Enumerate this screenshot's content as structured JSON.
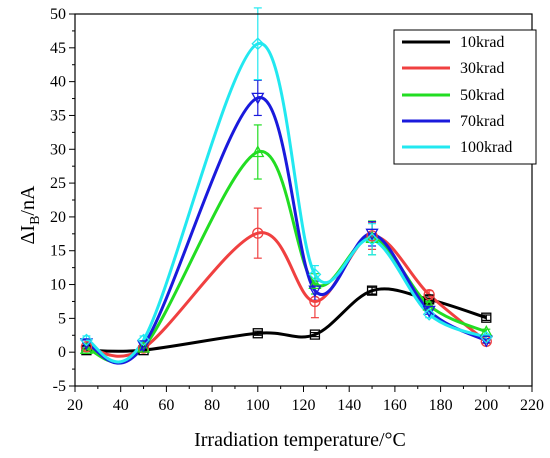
{
  "chart_data": {
    "type": "line",
    "title": "",
    "xlabel": "Irradiation temperature/°C",
    "ylabel": {
      "main": "ΔI",
      "sub": "B",
      "unit": "/nA"
    },
    "xlim": [
      20,
      220
    ],
    "ylim": [
      -5,
      50
    ],
    "x_ticks": [
      20,
      40,
      60,
      80,
      100,
      120,
      140,
      160,
      180,
      200,
      220
    ],
    "y_ticks": [
      -5,
      0,
      5,
      10,
      15,
      20,
      25,
      30,
      35,
      40,
      45,
      50
    ],
    "grid": false,
    "legend_position": "top-right",
    "x": [
      25,
      50,
      100,
      125,
      150,
      175,
      200
    ],
    "series": [
      {
        "name": "10krad",
        "color": "#000000",
        "marker": "square",
        "values": [
          0.3,
          0.3,
          2.8,
          2.6,
          9.1,
          7.8,
          5.1
        ],
        "errors": [
          0.2,
          0.2,
          0.3,
          0.3,
          0.5,
          0.5,
          0.4
        ]
      },
      {
        "name": "30krad",
        "color": "#f04040",
        "marker": "circle",
        "values": [
          0.8,
          0.6,
          17.6,
          7.5,
          17.2,
          8.5,
          1.6
        ],
        "errors": [
          0.5,
          0.4,
          3.7,
          2.4,
          2.0,
          0.6,
          0.3
        ]
      },
      {
        "name": "50krad",
        "color": "#22dd22",
        "marker": "triangle-up",
        "values": [
          0.5,
          0.7,
          29.6,
          10.1,
          16.9,
          6.9,
          3.0
        ],
        "errors": [
          0.4,
          0.4,
          4.0,
          1.5,
          2.5,
          0.6,
          0.4
        ]
      },
      {
        "name": "70krad",
        "color": "#1a1adc",
        "marker": "triangle-down",
        "values": [
          1.3,
          1.0,
          37.6,
          9.1,
          17.5,
          6.1,
          1.7
        ],
        "errors": [
          0.5,
          0.4,
          2.6,
          1.4,
          1.8,
          0.5,
          0.3
        ]
      },
      {
        "name": "100krad",
        "color": "#22e8f0",
        "marker": "diamond",
        "values": [
          1.8,
          1.8,
          45.6,
          11.5,
          16.7,
          5.6,
          2.2
        ],
        "errors": [
          0.6,
          0.6,
          5.3,
          1.3,
          2.3,
          0.5,
          0.4
        ]
      }
    ]
  }
}
